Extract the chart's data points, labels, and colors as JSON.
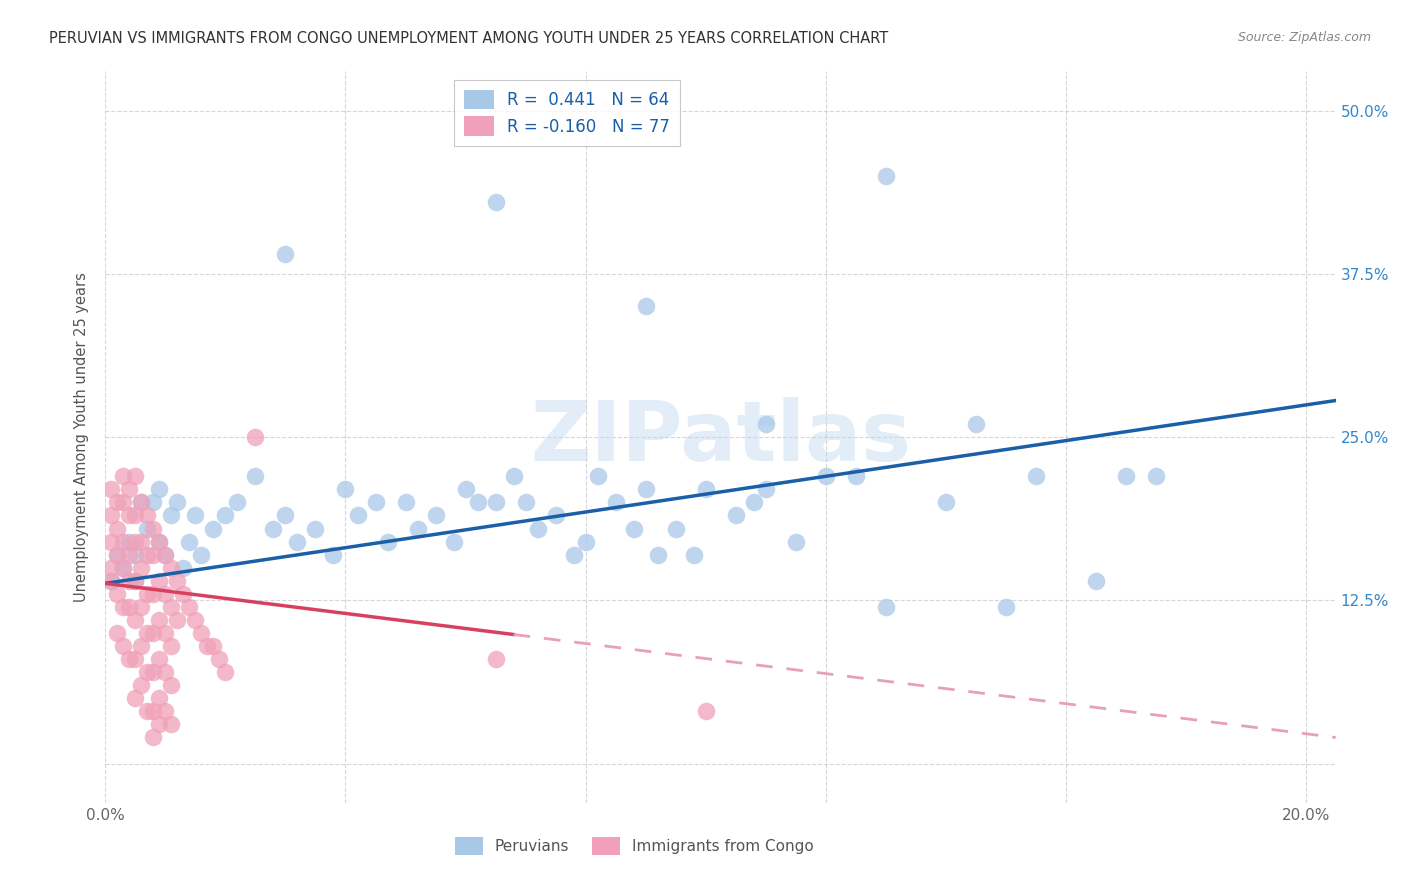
{
  "title": "PERUVIAN VS IMMIGRANTS FROM CONGO UNEMPLOYMENT AMONG YOUTH UNDER 25 YEARS CORRELATION CHART",
  "source": "Source: ZipAtlas.com",
  "ylabel": "Unemployment Among Youth under 25 years",
  "xlim": [
    0.0,
    0.205
  ],
  "ylim": [
    -0.03,
    0.53
  ],
  "x_ticks": [
    0.0,
    0.04,
    0.08,
    0.12,
    0.16,
    0.2
  ],
  "x_tick_labels": [
    "0.0%",
    "",
    "",
    "",
    "",
    "20.0%"
  ],
  "y_ticks": [
    0.0,
    0.125,
    0.25,
    0.375,
    0.5
  ],
  "y_tick_labels_right": [
    "",
    "12.5%",
    "25.0%",
    "37.5%",
    "50.0%"
  ],
  "blue_color": "#a8c8e8",
  "pink_color": "#f0a0b8",
  "blue_line_color": "#1a5fa8",
  "pink_line_color": "#d84060",
  "pink_line_dashed_color": "#e8a0b8",
  "legend_R_blue": "R =  0.441",
  "legend_N_blue": "N = 64",
  "legend_R_pink": "R = -0.160",
  "legend_N_pink": "N = 77",
  "legend_label_blue": "Peruvians",
  "legend_label_pink": "Immigrants from Congo",
  "watermark": "ZIPatlas",
  "blue_line_x0": 0.0,
  "blue_line_y0": 0.138,
  "blue_line_x1": 0.205,
  "blue_line_y1": 0.278,
  "pink_line_x0": 0.0,
  "pink_line_y0": 0.138,
  "pink_line_x1_solid": 0.068,
  "pink_line_x1": 0.205,
  "pink_line_y1": 0.02,
  "blue_x": [
    0.001,
    0.002,
    0.003,
    0.004,
    0.005,
    0.005,
    0.006,
    0.007,
    0.008,
    0.009,
    0.009,
    0.01,
    0.011,
    0.012,
    0.013,
    0.014,
    0.015,
    0.016,
    0.018,
    0.02,
    0.022,
    0.025,
    0.028,
    0.03,
    0.032,
    0.035,
    0.038,
    0.04,
    0.042,
    0.045,
    0.047,
    0.05,
    0.052,
    0.055,
    0.058,
    0.06,
    0.062,
    0.065,
    0.068,
    0.07,
    0.072,
    0.075,
    0.078,
    0.08,
    0.082,
    0.085,
    0.088,
    0.09,
    0.092,
    0.095,
    0.098,
    0.1,
    0.105,
    0.108,
    0.11,
    0.115,
    0.12,
    0.125,
    0.13,
    0.14,
    0.15,
    0.155,
    0.165,
    0.175
  ],
  "blue_y": [
    0.14,
    0.16,
    0.15,
    0.17,
    0.16,
    0.14,
    0.2,
    0.18,
    0.2,
    0.21,
    0.17,
    0.16,
    0.19,
    0.2,
    0.15,
    0.17,
    0.19,
    0.16,
    0.18,
    0.19,
    0.2,
    0.22,
    0.18,
    0.19,
    0.17,
    0.18,
    0.16,
    0.21,
    0.19,
    0.2,
    0.17,
    0.2,
    0.18,
    0.19,
    0.17,
    0.21,
    0.2,
    0.2,
    0.22,
    0.2,
    0.18,
    0.19,
    0.16,
    0.17,
    0.22,
    0.2,
    0.18,
    0.21,
    0.16,
    0.18,
    0.16,
    0.21,
    0.19,
    0.2,
    0.21,
    0.17,
    0.22,
    0.22,
    0.12,
    0.2,
    0.12,
    0.22,
    0.14,
    0.22
  ],
  "blue_x_outliers": [
    0.03,
    0.065,
    0.09,
    0.11,
    0.13,
    0.145,
    0.17
  ],
  "blue_y_outliers": [
    0.39,
    0.43,
    0.35,
    0.26,
    0.45,
    0.26,
    0.22
  ],
  "pink_x": [
    0.001,
    0.001,
    0.001,
    0.001,
    0.001,
    0.002,
    0.002,
    0.002,
    0.002,
    0.002,
    0.003,
    0.003,
    0.003,
    0.003,
    0.003,
    0.003,
    0.004,
    0.004,
    0.004,
    0.004,
    0.004,
    0.004,
    0.005,
    0.005,
    0.005,
    0.005,
    0.005,
    0.005,
    0.005,
    0.006,
    0.006,
    0.006,
    0.006,
    0.006,
    0.006,
    0.007,
    0.007,
    0.007,
    0.007,
    0.007,
    0.007,
    0.008,
    0.008,
    0.008,
    0.008,
    0.008,
    0.008,
    0.008,
    0.009,
    0.009,
    0.009,
    0.009,
    0.009,
    0.009,
    0.01,
    0.01,
    0.01,
    0.01,
    0.01,
    0.011,
    0.011,
    0.011,
    0.011,
    0.011,
    0.012,
    0.012,
    0.013,
    0.014,
    0.015,
    0.016,
    0.017,
    0.018,
    0.019,
    0.02,
    0.025,
    0.065,
    0.1
  ],
  "pink_y": [
    0.15,
    0.17,
    0.19,
    0.21,
    0.14,
    0.2,
    0.18,
    0.16,
    0.13,
    0.1,
    0.22,
    0.2,
    0.17,
    0.15,
    0.12,
    0.09,
    0.21,
    0.19,
    0.16,
    0.14,
    0.12,
    0.08,
    0.22,
    0.19,
    0.17,
    0.14,
    0.11,
    0.08,
    0.05,
    0.2,
    0.17,
    0.15,
    0.12,
    0.09,
    0.06,
    0.19,
    0.16,
    0.13,
    0.1,
    0.07,
    0.04,
    0.18,
    0.16,
    0.13,
    0.1,
    0.07,
    0.04,
    0.02,
    0.17,
    0.14,
    0.11,
    0.08,
    0.05,
    0.03,
    0.16,
    0.13,
    0.1,
    0.07,
    0.04,
    0.15,
    0.12,
    0.09,
    0.06,
    0.03,
    0.14,
    0.11,
    0.13,
    0.12,
    0.11,
    0.1,
    0.09,
    0.09,
    0.08,
    0.07,
    0.25,
    0.08,
    0.04
  ]
}
